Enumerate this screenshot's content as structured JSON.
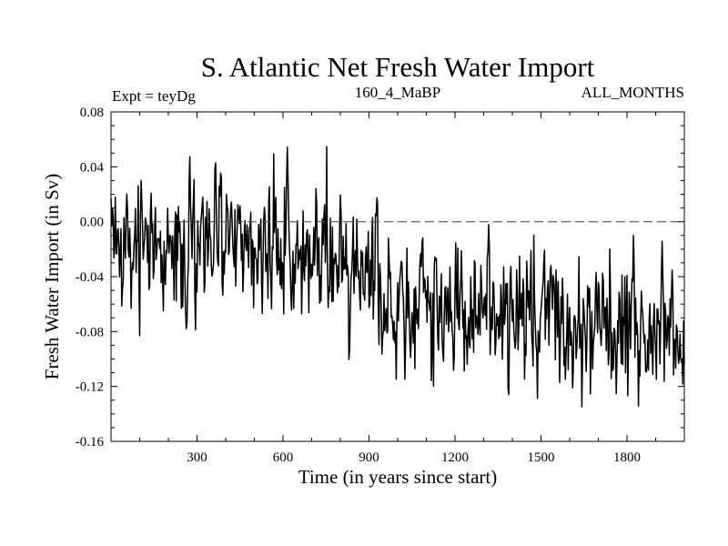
{
  "chart_data": {
    "type": "line",
    "title": "S. Atlantic Net Fresh Water Import",
    "subtitle_left": "Expt = teyDg",
    "subtitle_center": "160_4_MaBP",
    "subtitle_right": "ALL_MONTHS",
    "xlabel": "Time (in years since start)",
    "ylabel": "Fresh Water Import (in Sv)",
    "xlim": [
      0,
      2000
    ],
    "ylim": [
      -0.16,
      0.08
    ],
    "xticks": [
      300,
      600,
      900,
      1200,
      1500,
      1800
    ],
    "xtick_labels": [
      "300",
      "600",
      "900",
      "1200",
      "1500",
      "1800"
    ],
    "yticks": [
      0.08,
      0.04,
      0.0,
      -0.04,
      -0.08,
      -0.12,
      -0.16
    ],
    "ytick_labels": [
      "0.08",
      "0.04",
      "0.00",
      "-0.04",
      "-0.08",
      "-0.12",
      "-0.16"
    ],
    "reference_line": {
      "y": 0.0,
      "style": "dashed"
    },
    "series": [
      {
        "name": "Net fresh water import",
        "x": [
          0,
          50,
          100,
          150,
          200,
          250,
          300,
          350,
          400,
          450,
          500,
          550,
          600,
          650,
          700,
          750,
          800,
          850,
          900,
          950,
          1000,
          1050,
          1100,
          1150,
          1200,
          1250,
          1300,
          1350,
          1400,
          1450,
          1500,
          1550,
          1600,
          1650,
          1700,
          1750,
          1800,
          1850,
          1900,
          1950,
          2000
        ],
        "y": [
          -0.01,
          -0.02,
          -0.015,
          -0.02,
          -0.025,
          -0.015,
          -0.02,
          -0.01,
          -0.02,
          -0.015,
          -0.025,
          -0.02,
          -0.025,
          -0.03,
          -0.03,
          -0.035,
          -0.035,
          -0.04,
          -0.03,
          -0.04,
          -0.05,
          -0.055,
          -0.06,
          -0.06,
          -0.055,
          -0.065,
          -0.06,
          -0.07,
          -0.065,
          -0.07,
          -0.075,
          -0.07,
          -0.075,
          -0.08,
          -0.08,
          -0.085,
          -0.08,
          -0.085,
          -0.08,
          -0.085,
          -0.08
        ]
      }
    ]
  }
}
